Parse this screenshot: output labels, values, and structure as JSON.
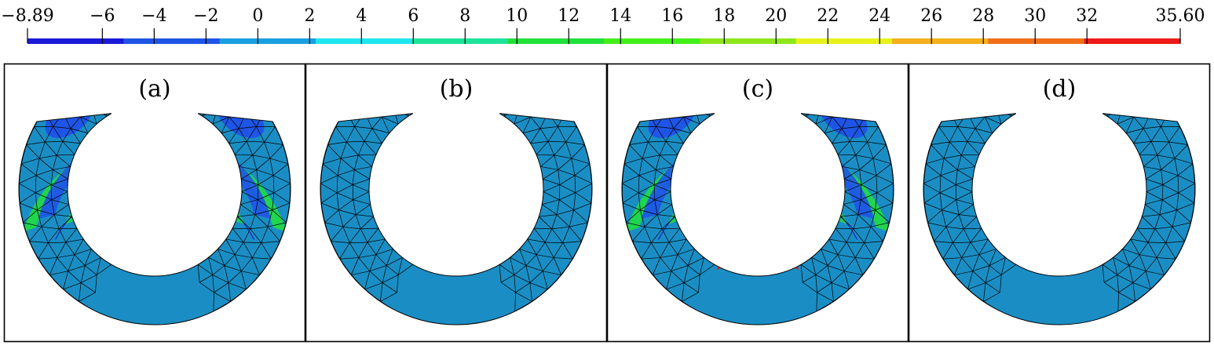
{
  "colorbar": {
    "min_label": "−8.89",
    "max_label": "35.60",
    "ticks": [
      {
        "value": -6,
        "label": "−6"
      },
      {
        "value": -4,
        "label": "−4"
      },
      {
        "value": -2,
        "label": "−2"
      },
      {
        "value": 0,
        "label": "0"
      },
      {
        "value": 2,
        "label": "2"
      },
      {
        "value": 4,
        "label": "4"
      },
      {
        "value": 6,
        "label": "6"
      },
      {
        "value": 8,
        "label": "8"
      },
      {
        "value": 10,
        "label": "10"
      },
      {
        "value": 12,
        "label": "12"
      },
      {
        "value": 14,
        "label": "14"
      },
      {
        "value": 16,
        "label": "16"
      },
      {
        "value": 18,
        "label": "18"
      },
      {
        "value": 20,
        "label": "20"
      },
      {
        "value": 22,
        "label": "22"
      },
      {
        "value": 24,
        "label": "24"
      },
      {
        "value": 26,
        "label": "26"
      },
      {
        "value": 28,
        "label": "28"
      },
      {
        "value": 30,
        "label": "30"
      },
      {
        "value": 32,
        "label": "32"
      }
    ],
    "colors": [
      "#1a1ad8",
      "#1f55e6",
      "#1aa0e0",
      "#1ee6ee",
      "#1ee39a",
      "#22e03a",
      "#44f01a",
      "#8ee61a",
      "#e6f21a",
      "#f2b01a",
      "#f0701a",
      "#ee1a1a"
    ]
  },
  "panels": [
    {
      "label": "(a)",
      "field": "stress"
    },
    {
      "label": "(b)",
      "field": "uniform"
    },
    {
      "label": "(c)",
      "field": "stress"
    },
    {
      "label": "(d)",
      "field": "uniform"
    }
  ],
  "colors": {
    "base_fill": "#1a8ec4",
    "deep_blue": "#1a1ad8",
    "mid_blue": "#1f55e6",
    "cyan": "#1ee6ee",
    "green": "#22e03a",
    "hot": "#ee1a1a"
  }
}
